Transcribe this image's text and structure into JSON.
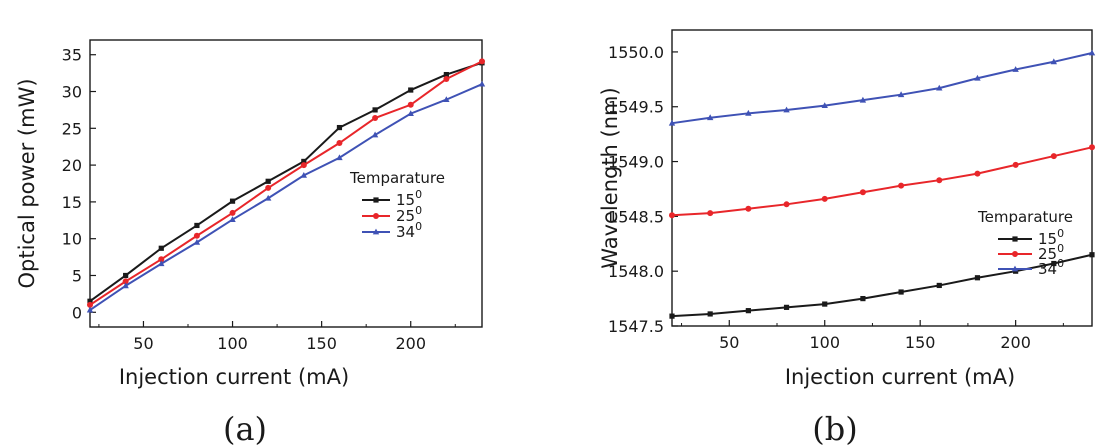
{
  "chart_data": [
    {
      "type": "line",
      "panel_label": "(a)",
      "xlabel": "Injection current (mA)",
      "ylabel": "Optical power (mW)",
      "xlim": [
        20,
        240
      ],
      "ylim": [
        -2,
        37
      ],
      "xticks": [
        50,
        100,
        150,
        200
      ],
      "xtick_labels": [
        "50",
        "100",
        "150",
        "200"
      ],
      "yticks": [
        0,
        5,
        10,
        15,
        20,
        25,
        30,
        35
      ],
      "ytick_labels": [
        "0",
        "5",
        "10",
        "15",
        "20",
        "25",
        "30",
        "35"
      ],
      "grid": false,
      "legend": {
        "title": "Temparature",
        "position": "right",
        "entries": [
          {
            "base": "15",
            "sup": "0"
          },
          {
            "base": "25",
            "sup": "0"
          },
          {
            "base": "34",
            "sup": "0"
          }
        ]
      },
      "x": [
        20,
        40,
        60,
        80,
        100,
        120,
        140,
        160,
        180,
        200,
        220,
        240
      ],
      "series": [
        {
          "color": "#1a1a1a",
          "marker": "square",
          "values": [
            1.5,
            5.0,
            8.7,
            11.8,
            15.1,
            17.8,
            20.5,
            25.1,
            27.5,
            30.2,
            32.3,
            33.9
          ]
        },
        {
          "color": "#e8262a",
          "marker": "circle",
          "values": [
            1.0,
            4.2,
            7.2,
            10.4,
            13.5,
            16.9,
            20.0,
            23.0,
            26.4,
            28.2,
            31.7,
            34.1
          ]
        },
        {
          "color": "#3f52b5",
          "marker": "triangle",
          "values": [
            0.3,
            3.6,
            6.6,
            9.5,
            12.6,
            15.5,
            18.6,
            21.0,
            24.1,
            27.0,
            28.9,
            31.0
          ]
        }
      ]
    },
    {
      "type": "line",
      "panel_label": "(b)",
      "xlabel": "Injection current (mA)",
      "ylabel": "Wavelength (nm)",
      "xlim": [
        20,
        240
      ],
      "ylim": [
        1547.5,
        1550.2
      ],
      "xticks": [
        50,
        100,
        150,
        200
      ],
      "xtick_labels": [
        "50",
        "100",
        "150",
        "200"
      ],
      "yticks": [
        1547.5,
        1548.0,
        1548.5,
        1549.0,
        1549.5,
        1550.0
      ],
      "ytick_labels": [
        "1547.5",
        "1548.0",
        "1548.5",
        "1549.0",
        "1549.5",
        "1550.0"
      ],
      "grid": false,
      "legend": {
        "title": "Temparature",
        "position": "right",
        "entries": [
          {
            "base": "15",
            "sup": "0"
          },
          {
            "base": "25",
            "sup": "0"
          },
          {
            "base": "34",
            "sup": "0"
          }
        ]
      },
      "x": [
        20,
        40,
        60,
        80,
        100,
        120,
        140,
        160,
        180,
        200,
        220,
        240
      ],
      "series": [
        {
          "color": "#1a1a1a",
          "marker": "square",
          "values": [
            1547.59,
            1547.61,
            1547.64,
            1547.67,
            1547.7,
            1547.75,
            1547.81,
            1547.87,
            1547.94,
            1548.0,
            1548.07,
            1548.15
          ]
        },
        {
          "color": "#e8262a",
          "marker": "circle",
          "values": [
            1548.51,
            1548.53,
            1548.57,
            1548.61,
            1548.66,
            1548.72,
            1548.78,
            1548.83,
            1548.89,
            1548.97,
            1549.05,
            1549.13
          ]
        },
        {
          "color": "#3f52b5",
          "marker": "triangle",
          "values": [
            1549.35,
            1549.4,
            1549.44,
            1549.47,
            1549.51,
            1549.56,
            1549.61,
            1549.67,
            1549.76,
            1549.84,
            1549.91,
            1549.99
          ]
        }
      ]
    }
  ]
}
